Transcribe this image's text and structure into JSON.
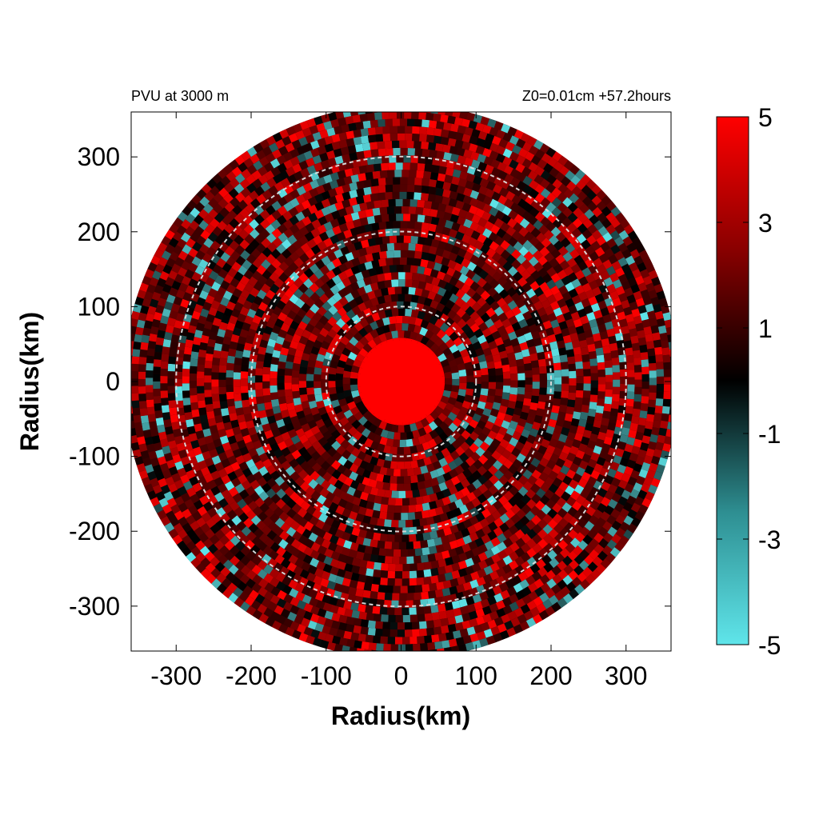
{
  "chart_data": {
    "type": "heatmap",
    "title_left": "PVU at  3000 m",
    "title_right": "Z0=0.01cm  +57.2hours",
    "xlabel": "Radius(km)",
    "ylabel": "Radius(km)",
    "xlim": [
      -360,
      360
    ],
    "ylim": [
      -360,
      360
    ],
    "xticks": [
      -300,
      -200,
      -100,
      0,
      100,
      200,
      300
    ],
    "yticks": [
      -300,
      -200,
      -100,
      0,
      100,
      200,
      300
    ],
    "reference_circles_km": [
      100,
      200,
      300
    ],
    "core_red_radius_km": 55,
    "colorbar": {
      "min": -5,
      "max": 5,
      "ticks": [
        5,
        3,
        1,
        -1,
        -3,
        -5
      ],
      "colors": {
        "low": "#5fe5ea",
        "mid": "#000000",
        "high": "#ff0000"
      }
    },
    "grid": false
  }
}
